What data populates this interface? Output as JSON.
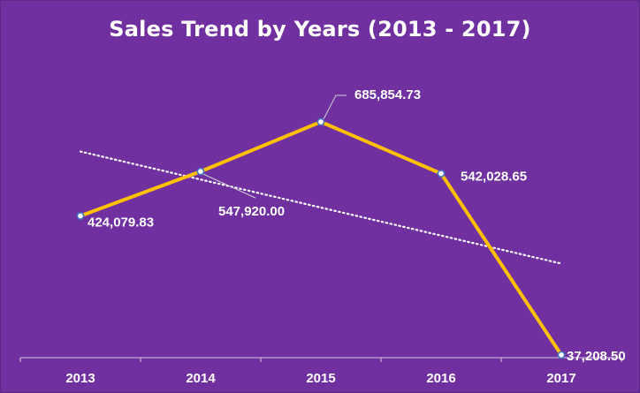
{
  "chart_data": {
    "type": "line",
    "title": "Sales Trend by Years (2013 - 2017)",
    "xlabel": "",
    "ylabel": "",
    "categories": [
      "2013",
      "2014",
      "2015",
      "2016",
      "2017"
    ],
    "series": [
      {
        "values": [
          424079.83,
          547920.0,
          685854.73,
          542028.65,
          37208.5
        ],
        "data_labels": [
          "424,079.83",
          "547,920.00",
          "685,854.73",
          "542,028.65",
          "37,208.50"
        ],
        "color": "#ffc000"
      }
    ],
    "trendline": {
      "type": "linear",
      "style": "dotted",
      "color": "#ffffff"
    },
    "ylim": [
      0,
      800000
    ],
    "grid": false,
    "legend": "none",
    "background": "#7030a0"
  }
}
